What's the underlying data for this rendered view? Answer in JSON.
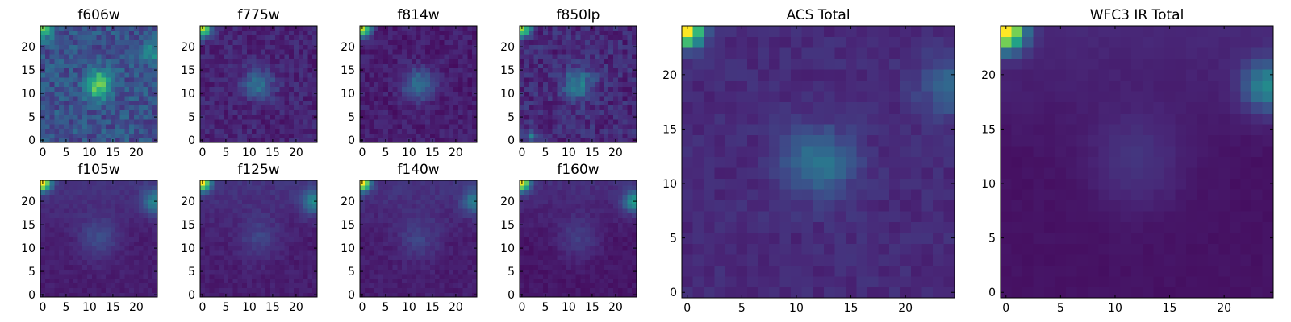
{
  "figure": {
    "description": "Grid of image cutout panels",
    "colormap": [
      "#440154",
      "#482878",
      "#3e4a89",
      "#31688e",
      "#26828e",
      "#1f9e89",
      "#35b779",
      "#6ece58",
      "#b5de2b",
      "#fde725"
    ]
  },
  "chart_data": [
    {
      "type": "heatmap",
      "title": "f606w",
      "xticks": [
        "0",
        "5",
        "10",
        "15",
        "20"
      ],
      "yticks": [
        "0",
        "5",
        "10",
        "15",
        "20"
      ],
      "xlim": [
        -0.5,
        24.5
      ],
      "ylim": [
        -0.5,
        24.5
      ],
      "grid_size": 25,
      "seed": 11,
      "noise": 0.22,
      "base": 0.25,
      "features": [
        {
          "x": 12,
          "y": 12,
          "amp": 0.55,
          "sigma": 2.0
        },
        {
          "x": 0,
          "y": 24,
          "amp": 0.5,
          "sigma": 1.5
        },
        {
          "x": 24,
          "y": 19,
          "amp": 0.25,
          "sigma": 2.0
        }
      ]
    },
    {
      "type": "heatmap",
      "title": "f775w",
      "xticks": [
        "0",
        "5",
        "10",
        "15",
        "20"
      ],
      "yticks": [
        "0",
        "5",
        "10",
        "15",
        "20"
      ],
      "xlim": [
        -0.5,
        24.5
      ],
      "ylim": [
        -0.5,
        24.5
      ],
      "grid_size": 25,
      "seed": 23,
      "noise": 0.12,
      "base": 0.1,
      "features": [
        {
          "x": 12,
          "y": 12,
          "amp": 0.28,
          "sigma": 2.2
        },
        {
          "x": 0,
          "y": 24,
          "amp": 0.8,
          "sigma": 1.3
        }
      ]
    },
    {
      "type": "heatmap",
      "title": "f814w",
      "xticks": [
        "0",
        "5",
        "10",
        "15",
        "20"
      ],
      "yticks": [
        "0",
        "5",
        "10",
        "15",
        "20"
      ],
      "xlim": [
        -0.5,
        24.5
      ],
      "ylim": [
        -0.5,
        24.5
      ],
      "grid_size": 25,
      "seed": 37,
      "noise": 0.1,
      "base": 0.08,
      "features": [
        {
          "x": 12,
          "y": 12,
          "amp": 0.3,
          "sigma": 2.3
        },
        {
          "x": 0,
          "y": 24,
          "amp": 0.8,
          "sigma": 1.3
        }
      ]
    },
    {
      "type": "heatmap",
      "title": "f850lp",
      "xticks": [
        "0",
        "5",
        "10",
        "15",
        "20"
      ],
      "yticks": [
        "0",
        "5",
        "10",
        "15",
        "20"
      ],
      "xlim": [
        -0.5,
        24.5
      ],
      "ylim": [
        -0.5,
        24.5
      ],
      "grid_size": 25,
      "seed": 41,
      "noise": 0.16,
      "base": 0.12,
      "features": [
        {
          "x": 12,
          "y": 12,
          "amp": 0.3,
          "sigma": 2.3
        },
        {
          "x": 0,
          "y": 24,
          "amp": 0.75,
          "sigma": 1.3
        },
        {
          "x": 2,
          "y": 1,
          "amp": 0.35,
          "sigma": 0.8
        }
      ]
    },
    {
      "type": "heatmap",
      "title": "f105w",
      "xticks": [
        "0",
        "5",
        "10",
        "15",
        "20"
      ],
      "yticks": [
        "0",
        "5",
        "10",
        "15",
        "20"
      ],
      "xlim": [
        -0.5,
        24.5
      ],
      "ylim": [
        -0.5,
        24.5
      ],
      "grid_size": 25,
      "seed": 53,
      "noise": 0.05,
      "base": 0.08,
      "gradient": 0.12,
      "features": [
        {
          "x": 12,
          "y": 12,
          "amp": 0.15,
          "sigma": 3.0
        },
        {
          "x": 0,
          "y": 24,
          "amp": 0.9,
          "sigma": 1.2
        },
        {
          "x": 24,
          "y": 20,
          "amp": 0.35,
          "sigma": 1.8
        }
      ]
    },
    {
      "type": "heatmap",
      "title": "f125w",
      "xticks": [
        "0",
        "5",
        "10",
        "15",
        "20"
      ],
      "yticks": [
        "0",
        "5",
        "10",
        "15",
        "20"
      ],
      "xlim": [
        -0.5,
        24.5
      ],
      "ylim": [
        -0.5,
        24.5
      ],
      "grid_size": 25,
      "seed": 67,
      "noise": 0.06,
      "base": 0.08,
      "gradient": 0.12,
      "features": [
        {
          "x": 12,
          "y": 12,
          "amp": 0.12,
          "sigma": 3.0
        },
        {
          "x": 0,
          "y": 24,
          "amp": 0.85,
          "sigma": 1.2
        },
        {
          "x": 24,
          "y": 20,
          "amp": 0.35,
          "sigma": 1.8
        }
      ]
    },
    {
      "type": "heatmap",
      "title": "f140w",
      "xticks": [
        "0",
        "5",
        "10",
        "15",
        "20"
      ],
      "yticks": [
        "0",
        "5",
        "10",
        "15",
        "20"
      ],
      "xlim": [
        -0.5,
        24.5
      ],
      "ylim": [
        -0.5,
        24.5
      ],
      "grid_size": 25,
      "seed": 71,
      "noise": 0.06,
      "base": 0.08,
      "gradient": 0.12,
      "features": [
        {
          "x": 12,
          "y": 12,
          "amp": 0.12,
          "sigma": 3.0
        },
        {
          "x": 0,
          "y": 24,
          "amp": 0.85,
          "sigma": 1.2
        },
        {
          "x": 24,
          "y": 20,
          "amp": 0.3,
          "sigma": 1.8
        }
      ]
    },
    {
      "type": "heatmap",
      "title": "f160w",
      "xticks": [
        "0",
        "5",
        "10",
        "15",
        "20"
      ],
      "yticks": [
        "0",
        "5",
        "10",
        "15",
        "20"
      ],
      "xlim": [
        -0.5,
        24.5
      ],
      "ylim": [
        -0.5,
        24.5
      ],
      "grid_size": 25,
      "seed": 83,
      "noise": 0.05,
      "base": 0.06,
      "gradient": 0.12,
      "features": [
        {
          "x": 12,
          "y": 12,
          "amp": 0.12,
          "sigma": 3.0
        },
        {
          "x": 0,
          "y": 24,
          "amp": 0.85,
          "sigma": 1.2
        },
        {
          "x": 24,
          "y": 20,
          "amp": 0.45,
          "sigma": 1.6
        }
      ]
    },
    {
      "type": "heatmap",
      "title": "ACS Total",
      "xticks": [
        "0",
        "5",
        "10",
        "15",
        "20"
      ],
      "yticks": [
        "0",
        "5",
        "10",
        "15",
        "20"
      ],
      "xlim": [
        -0.5,
        24.5
      ],
      "ylim": [
        -0.5,
        24.5
      ],
      "grid_size": 25,
      "seed": 97,
      "noise": 0.07,
      "base": 0.12,
      "features": [
        {
          "x": 12,
          "y": 12,
          "amp": 0.28,
          "sigma": 2.2
        },
        {
          "x": 0,
          "y": 24,
          "amp": 0.95,
          "sigma": 1.0
        },
        {
          "x": 24,
          "y": 19,
          "amp": 0.2,
          "sigma": 2.0
        }
      ]
    },
    {
      "type": "heatmap",
      "title": "WFC3 IR Total",
      "xticks": [
        "0",
        "5",
        "10",
        "15",
        "20"
      ],
      "yticks": [
        "0",
        "5",
        "10",
        "15",
        "20"
      ],
      "xlim": [
        -0.5,
        24.5
      ],
      "ylim": [
        -0.5,
        24.5
      ],
      "grid_size": 25,
      "seed": 101,
      "noise": 0.02,
      "base": 0.05,
      "gradient": 0.1,
      "features": [
        {
          "x": 12,
          "y": 12,
          "amp": 0.1,
          "sigma": 3.0
        },
        {
          "x": 0,
          "y": 24,
          "amp": 0.95,
          "sigma": 1.2
        },
        {
          "x": 24,
          "y": 19,
          "amp": 0.4,
          "sigma": 1.6
        }
      ]
    }
  ]
}
